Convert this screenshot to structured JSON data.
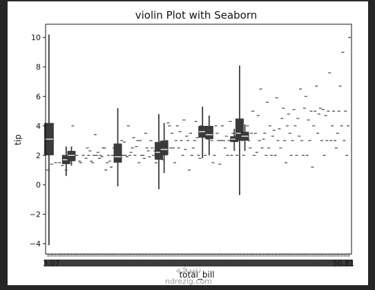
{
  "chart_data": {
    "type": "violin",
    "title": "violin Plot with Seaborn",
    "xlabel": "total_bill",
    "ylabel": "tip",
    "ylim": [
      -4.7,
      10.9
    ],
    "yticks": [
      -4,
      -2,
      0,
      2,
      4,
      6,
      8,
      10
    ],
    "x_first_tick": "3.07",
    "x_last_tick": "50.81",
    "grid": false,
    "n_categories": 229,
    "violins": [
      {
        "x_index": 1,
        "min": -4.1,
        "q1": 2.0,
        "median": 3.1,
        "q3": 4.2,
        "max": 10.2,
        "width": 4
      },
      {
        "x_index": 14,
        "min": 0.6,
        "q1": 1.4,
        "median": 1.7,
        "q3": 2.0,
        "max": 2.6,
        "width": 3
      },
      {
        "x_index": 18,
        "min": 1.3,
        "q1": 1.6,
        "median": 2.0,
        "q3": 2.3,
        "max": 2.6,
        "width": 3
      },
      {
        "x_index": 53,
        "min": -0.1,
        "q1": 1.5,
        "median": 1.9,
        "q3": 2.8,
        "max": 5.2,
        "width": 3
      },
      {
        "x_index": 84,
        "min": -0.3,
        "q1": 1.7,
        "median": 2.2,
        "q3": 2.9,
        "max": 4.8,
        "width": 3
      },
      {
        "x_index": 88,
        "min": 0.8,
        "q1": 2.0,
        "median": 2.4,
        "q3": 3.0,
        "max": 4.2,
        "width": 3
      },
      {
        "x_index": 117,
        "min": 1.8,
        "q1": 3.2,
        "median": 3.6,
        "q3": 4.0,
        "max": 5.3,
        "width": 3
      },
      {
        "x_index": 122,
        "min": 2.0,
        "q1": 3.1,
        "median": 3.4,
        "q3": 4.0,
        "max": 4.7,
        "width": 3
      },
      {
        "x_index": 141,
        "min": 2.3,
        "q1": 2.9,
        "median": 3.1,
        "q3": 3.3,
        "max": 3.8,
        "width": 3
      },
      {
        "x_index": 145,
        "min": -0.7,
        "q1": 3.0,
        "median": 3.5,
        "q3": 4.5,
        "max": 8.1,
        "width": 3
      },
      {
        "x_index": 149,
        "min": 2.3,
        "q1": 3.0,
        "median": 3.3,
        "q3": 3.6,
        "max": 4.1,
        "width": 3
      }
    ],
    "points": [
      [
        0,
        1.0
      ],
      [
        3,
        1.4
      ],
      [
        6,
        1.5
      ],
      [
        9,
        1.5
      ],
      [
        11,
        1.3
      ],
      [
        12,
        2.0
      ],
      [
        14,
        1.0
      ],
      [
        16,
        1.5
      ],
      [
        19,
        4.0
      ],
      [
        20,
        1.9
      ],
      [
        22,
        2.0
      ],
      [
        24,
        1.6
      ],
      [
        25,
        1.5
      ],
      [
        27,
        2.0
      ],
      [
        29,
        1.8
      ],
      [
        30,
        2.5
      ],
      [
        31,
        2.0
      ],
      [
        32,
        2.3
      ],
      [
        33,
        1.6
      ],
      [
        34,
        1.5
      ],
      [
        35,
        2.0
      ],
      [
        36,
        3.4
      ],
      [
        37,
        2.0
      ],
      [
        38,
        2.2
      ],
      [
        39,
        1.8
      ],
      [
        40,
        2.0
      ],
      [
        41,
        1.9
      ],
      [
        42,
        2.5
      ],
      [
        43,
        2.5
      ],
      [
        44,
        1.0
      ],
      [
        45,
        1.5
      ],
      [
        46,
        2.0
      ],
      [
        47,
        1.6
      ],
      [
        48,
        1.2
      ],
      [
        49,
        2.0
      ],
      [
        50,
        2.5
      ],
      [
        51,
        1.9
      ],
      [
        54,
        2.0
      ],
      [
        55,
        1.7
      ],
      [
        56,
        3.0
      ],
      [
        57,
        2.0
      ],
      [
        58,
        2.9
      ],
      [
        59,
        2.0
      ],
      [
        60,
        1.9
      ],
      [
        61,
        4.0
      ],
      [
        62,
        2.0
      ],
      [
        63,
        2.2
      ],
      [
        64,
        2.5
      ],
      [
        65,
        3.2
      ],
      [
        66,
        2.0
      ],
      [
        67,
        2.6
      ],
      [
        68,
        3.0
      ],
      [
        69,
        1.5
      ],
      [
        70,
        3.0
      ],
      [
        71,
        2.0
      ],
      [
        72,
        2.0
      ],
      [
        73,
        1.8
      ],
      [
        74,
        3.5
      ],
      [
        75,
        2.5
      ],
      [
        76,
        2.3
      ],
      [
        77,
        1.9
      ],
      [
        78,
        3.0
      ],
      [
        79,
        2.5
      ],
      [
        80,
        2.0
      ],
      [
        81,
        2.3
      ],
      [
        82,
        1.5
      ],
      [
        83,
        2.0
      ],
      [
        86,
        2.0
      ],
      [
        87,
        1.7
      ],
      [
        90,
        3.0
      ],
      [
        91,
        4.2
      ],
      [
        92,
        4.0
      ],
      [
        93,
        2.5
      ],
      [
        94,
        3.5
      ],
      [
        95,
        2.5
      ],
      [
        96,
        1.5
      ],
      [
        97,
        3.0
      ],
      [
        98,
        4.0
      ],
      [
        99,
        2.5
      ],
      [
        100,
        3.6
      ],
      [
        101,
        3.0
      ],
      [
        102,
        2.0
      ],
      [
        103,
        4.4
      ],
      [
        104,
        2.4
      ],
      [
        105,
        3.3
      ],
      [
        106,
        3.0
      ],
      [
        107,
        1.0
      ],
      [
        108,
        3.5
      ],
      [
        109,
        2.0
      ],
      [
        110,
        2.5
      ],
      [
        111,
        3.0
      ],
      [
        112,
        4.3
      ],
      [
        113,
        3.2
      ],
      [
        114,
        2.0
      ],
      [
        115,
        1.8
      ],
      [
        116,
        4.0
      ],
      [
        119,
        2.0
      ],
      [
        120,
        3.6
      ],
      [
        121,
        3.1
      ],
      [
        124,
        3.0
      ],
      [
        125,
        1.5
      ],
      [
        126,
        2.0
      ],
      [
        127,
        4.0
      ],
      [
        128,
        3.5
      ],
      [
        129,
        3.0
      ],
      [
        130,
        1.4
      ],
      [
        131,
        3.0
      ],
      [
        132,
        4.0
      ],
      [
        133,
        3.0
      ],
      [
        134,
        2.5
      ],
      [
        135,
        3.3
      ],
      [
        136,
        2.0
      ],
      [
        137,
        3.0
      ],
      [
        138,
        4.3
      ],
      [
        139,
        2.0
      ],
      [
        140,
        3.5
      ],
      [
        143,
        2.0
      ],
      [
        144,
        4.2
      ],
      [
        147,
        3.0
      ],
      [
        148,
        2.0
      ],
      [
        151,
        4.0
      ],
      [
        152,
        3.0
      ],
      [
        153,
        2.5
      ],
      [
        154,
        3.5
      ],
      [
        155,
        5.0
      ],
      [
        156,
        2.0
      ],
      [
        157,
        3.5
      ],
      [
        158,
        2.2
      ],
      [
        159,
        4.7
      ],
      [
        160,
        3.0
      ],
      [
        161,
        6.5
      ],
      [
        162,
        2.5
      ],
      [
        163,
        3.1
      ],
      [
        164,
        3.5
      ],
      [
        165,
        2.0
      ],
      [
        166,
        5.6
      ],
      [
        167,
        2.5
      ],
      [
        168,
        4.0
      ],
      [
        169,
        2.0
      ],
      [
        170,
        3.3
      ],
      [
        171,
        3.7
      ],
      [
        172,
        2.0
      ],
      [
        173,
        5.9
      ],
      [
        174,
        3.0
      ],
      [
        175,
        3.8
      ],
      [
        176,
        2.5
      ],
      [
        177,
        4.5
      ],
      [
        178,
        5.2
      ],
      [
        179,
        3.0
      ],
      [
        180,
        1.5
      ],
      [
        181,
        4.0
      ],
      [
        182,
        4.8
      ],
      [
        183,
        3.5
      ],
      [
        184,
        2.0
      ],
      [
        185,
        3.0
      ],
      [
        186,
        5.1
      ],
      [
        187,
        4.0
      ],
      [
        188,
        2.0
      ],
      [
        189,
        4.5
      ],
      [
        190,
        3.3
      ],
      [
        191,
        6.5
      ],
      [
        192,
        3.0
      ],
      [
        193,
        2.0
      ],
      [
        194,
        5.2
      ],
      [
        195,
        6.0
      ],
      [
        196,
        2.0
      ],
      [
        197,
        4.4
      ],
      [
        198,
        3.0
      ],
      [
        199,
        5.0
      ],
      [
        200,
        1.2
      ],
      [
        201,
        4.0
      ],
      [
        202,
        5.0
      ],
      [
        203,
        6.7
      ],
      [
        204,
        3.5
      ],
      [
        205,
        4.8
      ],
      [
        206,
        5.2
      ],
      [
        207,
        3.0
      ],
      [
        208,
        5.1
      ],
      [
        209,
        2.0
      ],
      [
        210,
        4.7
      ],
      [
        211,
        3.0
      ],
      [
        212,
        5.0
      ],
      [
        213,
        7.6
      ],
      [
        214,
        3.0
      ],
      [
        215,
        4.0
      ],
      [
        216,
        5.0
      ],
      [
        217,
        3.0
      ],
      [
        218,
        2.5
      ],
      [
        219,
        3.5
      ],
      [
        220,
        5.0
      ],
      [
        221,
        6.7
      ],
      [
        222,
        4.0
      ],
      [
        223,
        9.0
      ],
      [
        224,
        3.0
      ],
      [
        225,
        5.0
      ],
      [
        226,
        2.0
      ],
      [
        227,
        4.0
      ],
      [
        228,
        10.0
      ]
    ]
  },
  "watermark": {
    "arabic": "نسخه",
    "latin": "ndrezig.com"
  }
}
